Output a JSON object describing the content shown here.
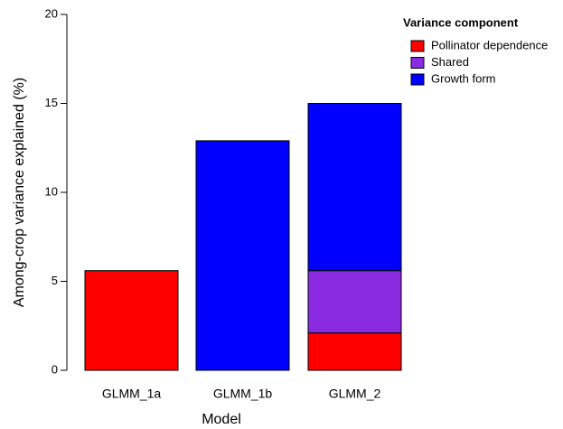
{
  "chart_data": {
    "type": "stacked_bar",
    "x_label": "Model",
    "y_label": "Among-crop variance explained (%)",
    "legend_title": "Variance component",
    "legend_position": "upper right",
    "categories": [
      "GLMM_1a",
      "GLMM_1b",
      "GLMM_2"
    ],
    "series": [
      {
        "name": "Pollinator dependence",
        "color": "#ff0000",
        "values": [
          5.6,
          null,
          2.1
        ]
      },
      {
        "name": "Shared",
        "color": "#8a2be2",
        "values": [
          null,
          null,
          3.5
        ]
      },
      {
        "name": "Growth form",
        "color": "#0000ff",
        "values": [
          null,
          12.9,
          9.4
        ]
      }
    ],
    "ylim": [
      0,
      20
    ],
    "yticks": [
      0,
      5,
      10,
      15,
      20
    ]
  }
}
